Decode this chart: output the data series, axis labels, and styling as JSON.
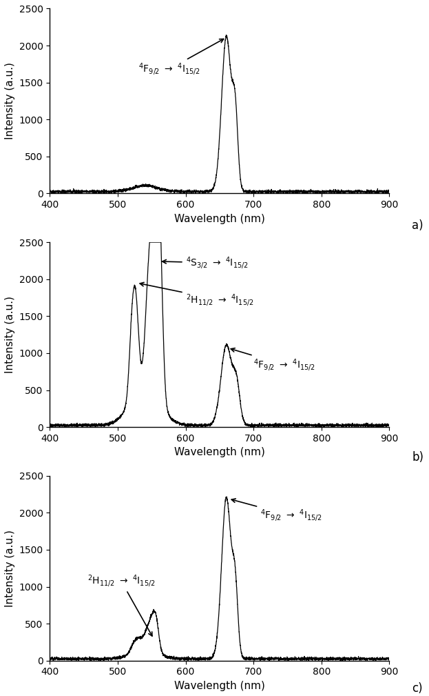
{
  "xlim": [
    400,
    900
  ],
  "ylim": [
    0,
    2500
  ],
  "yticks": [
    0,
    500,
    1000,
    1500,
    2000,
    2500
  ],
  "xticks": [
    400,
    500,
    600,
    700,
    800,
    900
  ],
  "xlabel": "Wavelength (nm)",
  "ylabel": "Intensity (a.u.)",
  "line_color": "#000000",
  "bg_color": "#ffffff",
  "panel_labels": [
    "a)",
    "b)",
    "c)"
  ]
}
